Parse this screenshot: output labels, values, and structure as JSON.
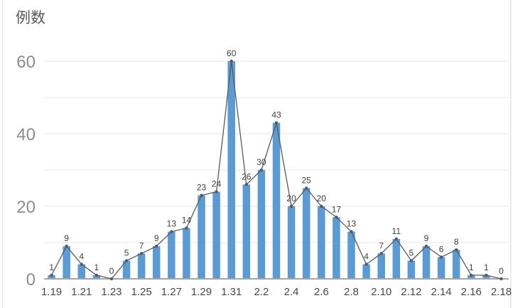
{
  "chart_data": {
    "type": "bar",
    "overlay": "line",
    "title": "例数",
    "categories": [
      "1.19",
      "1.20",
      "1.21",
      "1.22",
      "1.23",
      "1.24",
      "1.25",
      "1.26",
      "1.27",
      "1.28",
      "1.29",
      "1.30",
      "1.31",
      "2.1",
      "2.2",
      "2.3",
      "2.4",
      "2.5",
      "2.6",
      "2.7",
      "2.8",
      "2.9",
      "2.10",
      "2.11",
      "2.12",
      "2.13",
      "2.14",
      "2.15",
      "2.16",
      "2.17",
      "2.18"
    ],
    "values": [
      1,
      9,
      4,
      1,
      0,
      5,
      7,
      9,
      13,
      14,
      23,
      24,
      60,
      26,
      30,
      43,
      20,
      25,
      20,
      17,
      13,
      4,
      7,
      11,
      5,
      9,
      6,
      8,
      1,
      1,
      0
    ],
    "data_labels_shown": true,
    "x_axis_labels_shown": [
      "1.19",
      "1.21",
      "1.23",
      "1.25",
      "1.27",
      "1.29",
      "1.31",
      "2.2",
      "2.4",
      "2.6",
      "2.8",
      "2.10",
      "2.12",
      "2.14",
      "2.16",
      "2.18"
    ],
    "y_ticks_labeled": [
      0,
      20,
      40,
      60
    ],
    "ylim": [
      0,
      60
    ],
    "gridlines": "horizontal every 10, light gray",
    "legend": "none",
    "colors": {
      "bar": "#5b9bd5",
      "line": "#595959",
      "marker": "#595959",
      "gridline": "#e7e7e7",
      "axis_line": "#a6a6a6",
      "value_label": "#404040",
      "x_tick_label": "#474747",
      "y_tick_label": "#8c8c8c",
      "title": "#595959",
      "background": "#ffffff"
    }
  }
}
